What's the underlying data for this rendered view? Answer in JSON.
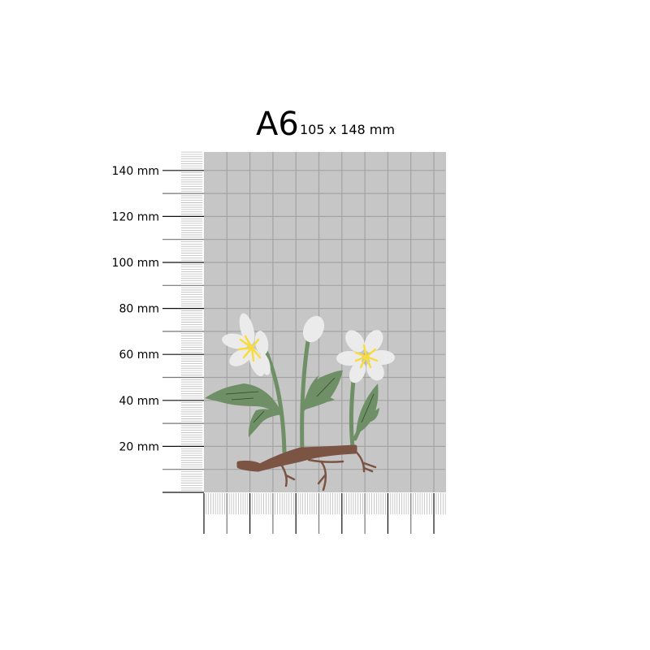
{
  "title": {
    "format": "A6",
    "dimensions": "105 x 148 mm"
  },
  "paper": {
    "width_mm": 105,
    "height_mm": 148,
    "fill": "#c6c6c6",
    "grid_color": "#a3a3a3",
    "grid_step_mm": 10
  },
  "ruler": {
    "labels": [
      {
        "mm": 140,
        "text": "140 mm"
      },
      {
        "mm": 120,
        "text": "120 mm"
      },
      {
        "mm": 100,
        "text": "100 mm"
      },
      {
        "mm": 80,
        "text": "80 mm"
      },
      {
        "mm": 60,
        "text": "60 mm"
      },
      {
        "mm": 40,
        "text": "40 mm"
      },
      {
        "mm": 20,
        "text": "20 mm"
      }
    ]
  },
  "illustration": {
    "subject": "wood-anemone-plant",
    "petal": "#ebebeb",
    "stamen": "#f9dc3c",
    "leaf": "#6f8f66",
    "root": "#7b5443"
  }
}
